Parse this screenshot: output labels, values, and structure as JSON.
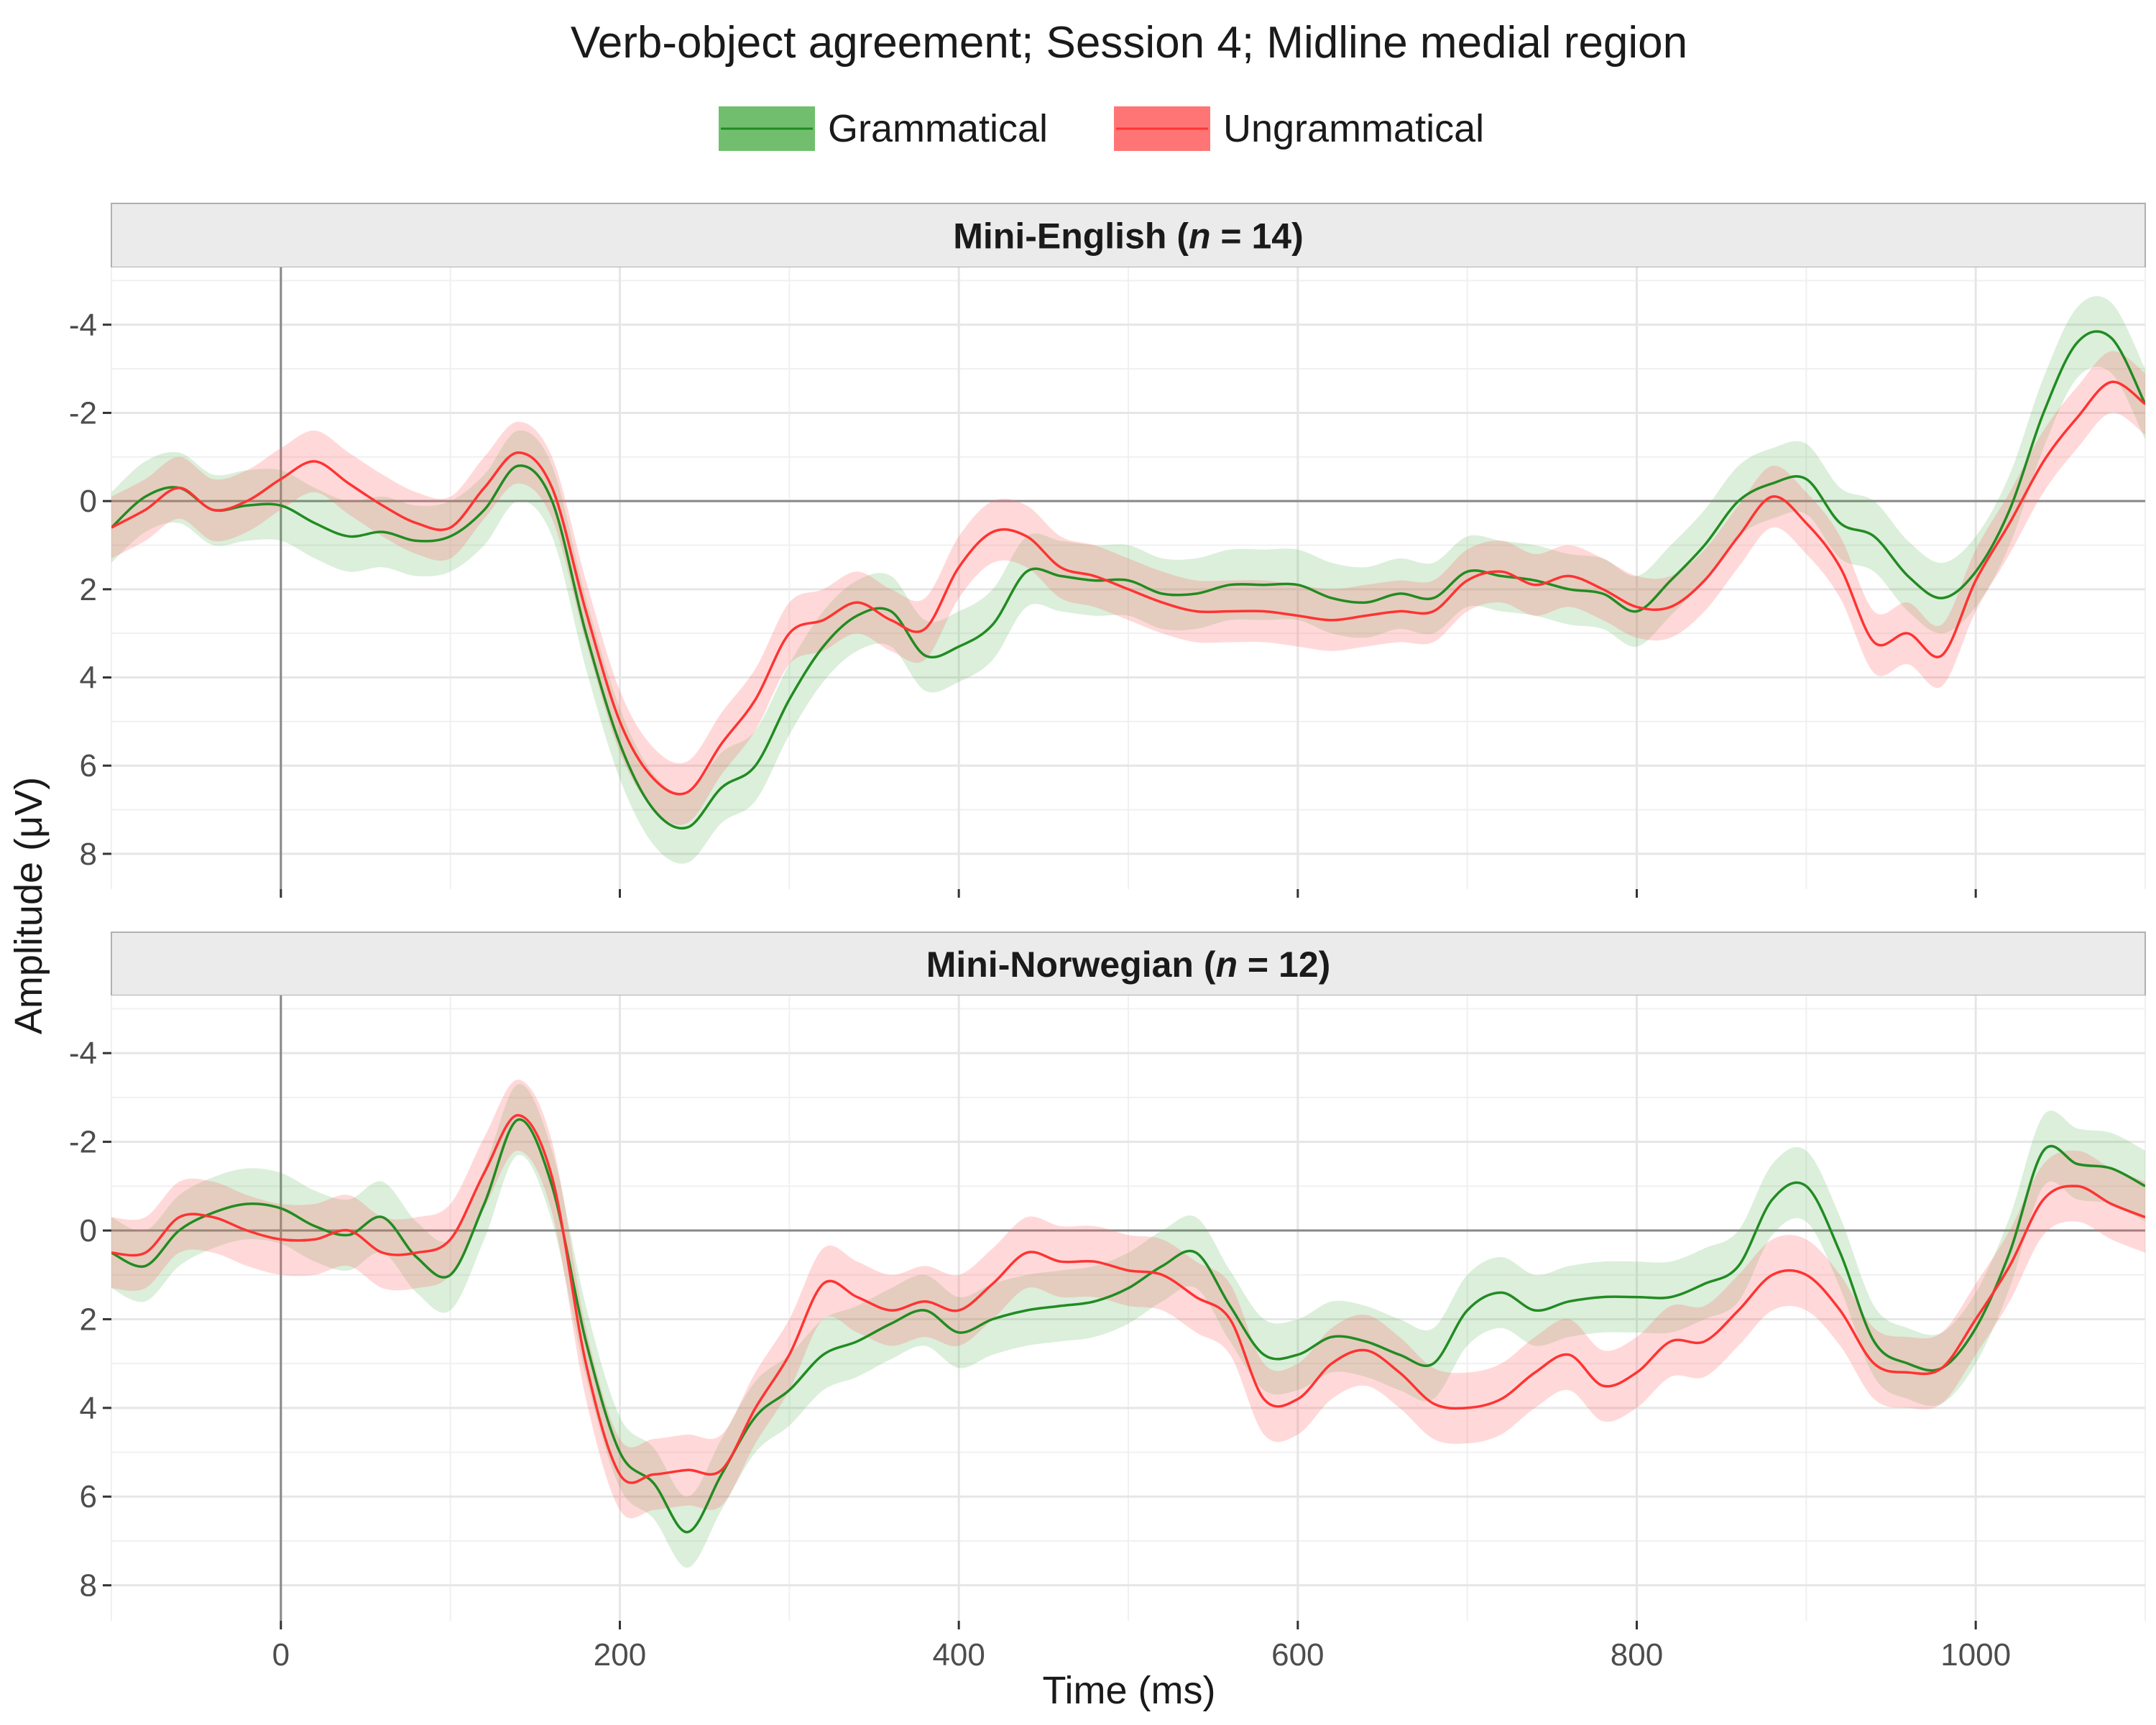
{
  "chart_data": {
    "type": "line",
    "title": "Verb-object agreement; Session 4; Midline medial region",
    "xlabel": "Time (ms)",
    "ylabel": "Amplitude (μV)",
    "xlim": [
      -100,
      1100
    ],
    "x_ticks": [
      0,
      200,
      400,
      600,
      800,
      1000
    ],
    "y_ticks": [
      -4,
      -2,
      0,
      2,
      4,
      6,
      8
    ],
    "y_tick_labels": [
      "-4",
      "-2",
      "0",
      "2",
      "4",
      "6",
      "8"
    ],
    "y_axis_reversed": true,
    "grid": true,
    "legend_position": "top",
    "legend": [
      {
        "name": "Grammatical",
        "color": "#228b22",
        "fill": "#4daf4a"
      },
      {
        "name": "Ungrammatical",
        "color": "#ff3333",
        "fill": "#ff6666"
      }
    ],
    "x": [
      -100,
      -80,
      -60,
      -40,
      -20,
      0,
      20,
      40,
      60,
      80,
      100,
      120,
      140,
      160,
      180,
      200,
      220,
      240,
      260,
      280,
      300,
      320,
      340,
      360,
      380,
      400,
      420,
      440,
      460,
      480,
      500,
      520,
      540,
      560,
      580,
      600,
      620,
      640,
      660,
      680,
      700,
      720,
      740,
      760,
      780,
      800,
      820,
      840,
      860,
      880,
      900,
      920,
      940,
      960,
      980,
      1000,
      1020,
      1040,
      1060,
      1080,
      1100
    ],
    "panels": [
      {
        "strip_prefix": "Mini-English (",
        "strip_n": "n",
        "strip_suffix": " = 14)",
        "ylim": [
          -5.3,
          8.8
        ],
        "series": [
          {
            "name": "Grammatical",
            "ci": 0.8,
            "values": [
              0.6,
              -0.1,
              -0.3,
              0.2,
              0.1,
              0.1,
              0.5,
              0.8,
              0.7,
              0.9,
              0.8,
              0.2,
              -0.8,
              0.0,
              3.0,
              5.5,
              7.0,
              7.4,
              6.5,
              6.0,
              4.5,
              3.3,
              2.6,
              2.5,
              3.5,
              3.3,
              2.8,
              1.6,
              1.7,
              1.8,
              1.8,
              2.1,
              2.1,
              1.9,
              1.9,
              1.9,
              2.2,
              2.3,
              2.1,
              2.2,
              1.6,
              1.7,
              1.8,
              2.0,
              2.1,
              2.5,
              1.8,
              1.0,
              0.0,
              -0.4,
              -0.5,
              0.5,
              0.8,
              1.7,
              2.2,
              1.6,
              0.2,
              -2.0,
              -3.6,
              -3.7,
              -2.2
            ]
          },
          {
            "name": "Ungrammatical",
            "ci": 0.7,
            "values": [
              0.6,
              0.2,
              -0.3,
              0.2,
              0.0,
              -0.5,
              -0.9,
              -0.4,
              0.1,
              0.5,
              0.6,
              -0.3,
              -1.1,
              -0.3,
              2.5,
              5.0,
              6.3,
              6.6,
              5.5,
              4.5,
              3.0,
              2.7,
              2.3,
              2.7,
              2.9,
              1.5,
              0.7,
              0.8,
              1.5,
              1.7,
              2.0,
              2.3,
              2.5,
              2.5,
              2.5,
              2.6,
              2.7,
              2.6,
              2.5,
              2.5,
              1.8,
              1.6,
              1.9,
              1.7,
              2.0,
              2.4,
              2.4,
              1.8,
              0.8,
              -0.1,
              0.5,
              1.5,
              3.2,
              3.0,
              3.5,
              1.8,
              0.5,
              -0.9,
              -1.9,
              -2.7,
              -2.2
            ]
          }
        ]
      },
      {
        "strip_prefix": "Mini-Norwegian (",
        "strip_n": "n",
        "strip_suffix": " = 12)",
        "ylim": [
          -5.3,
          8.8
        ],
        "series": [
          {
            "name": "Grammatical",
            "ci": 0.8,
            "values": [
              0.5,
              0.8,
              0.0,
              -0.4,
              -0.6,
              -0.5,
              -0.1,
              0.1,
              -0.3,
              0.6,
              1.0,
              -0.6,
              -2.5,
              -1.0,
              2.5,
              5.0,
              5.7,
              6.8,
              5.5,
              4.2,
              3.6,
              2.8,
              2.5,
              2.1,
              1.8,
              2.3,
              2.0,
              1.8,
              1.7,
              1.6,
              1.3,
              0.8,
              0.5,
              1.7,
              2.8,
              2.8,
              2.4,
              2.5,
              2.8,
              3.0,
              1.8,
              1.4,
              1.8,
              1.6,
              1.5,
              1.5,
              1.5,
              1.2,
              0.8,
              -0.7,
              -1.0,
              0.5,
              2.5,
              3.0,
              3.1,
              2.2,
              0.5,
              -1.8,
              -1.5,
              -1.4,
              -1.0
            ]
          },
          {
            "name": "Ungrammatical",
            "ci": 0.8,
            "values": [
              0.5,
              0.5,
              -0.3,
              -0.3,
              0.0,
              0.2,
              0.2,
              0.0,
              0.5,
              0.5,
              0.2,
              -1.3,
              -2.6,
              -1.2,
              3.0,
              5.5,
              5.5,
              5.4,
              5.4,
              4.0,
              2.8,
              1.2,
              1.5,
              1.8,
              1.6,
              1.8,
              1.2,
              0.5,
              0.7,
              0.7,
              0.9,
              1.0,
              1.5,
              2.0,
              3.8,
              3.8,
              3.0,
              2.7,
              3.2,
              3.9,
              4.0,
              3.8,
              3.2,
              2.8,
              3.5,
              3.2,
              2.5,
              2.5,
              1.8,
              1.0,
              1.0,
              1.8,
              3.0,
              3.2,
              3.1,
              2.0,
              0.8,
              -0.7,
              -1.0,
              -0.6,
              -0.3
            ]
          }
        ]
      }
    ]
  }
}
